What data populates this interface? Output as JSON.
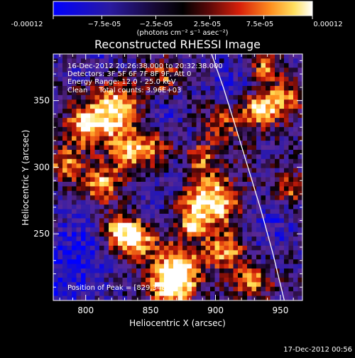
{
  "colorbar": {
    "ticks": [
      "-0.00012",
      "−7.5e-05",
      "−2.5e-05",
      "2.5e-05",
      "7.5e-05",
      "0.00012"
    ],
    "tick_values": [
      -0.00012,
      -7.5e-05,
      -2.5e-05,
      2.5e-05,
      7.5e-05,
      0.00012
    ],
    "range": [
      -0.00012,
      0.00012
    ],
    "unit_label": "(photons cm⁻² s⁻¹ asec⁻²)"
  },
  "chart_data": {
    "type": "heatmap",
    "title": "Reconstructed RHESSI Image",
    "xlabel": "Heliocentric X (arcsec)",
    "ylabel": "Heliocentric Y (arcsec)",
    "xlim": [
      775,
      967
    ],
    "ylim": [
      200,
      385
    ],
    "xticks": [
      800,
      850,
      900,
      950
    ],
    "yticks": [
      250,
      300,
      350
    ],
    "colormap": "rhessi-blue-black-red-yellow-white",
    "limb_curve": {
      "x": [
        897,
        906,
        915,
        925,
        935,
        944,
        953
      ],
      "y": [
        385,
        360,
        332,
        300,
        268,
        236,
        200
      ]
    },
    "peak": {
      "x": 829,
      "y": 348
    },
    "info_lines": [
      "16-Dec-2012 20:26:38.000 to 20:32:38.000",
      "Detectors: 3F 5F 6F 7F 8F 9F, Att 0",
      "Energy Range: 12.0 - 25.0 keV",
      "Clean     Total counts: 3.96E+03"
    ],
    "peak_label": "Position of Peak = [829,348]"
  },
  "footer": {
    "timestamp": "17-Dec-2012 00:56"
  }
}
